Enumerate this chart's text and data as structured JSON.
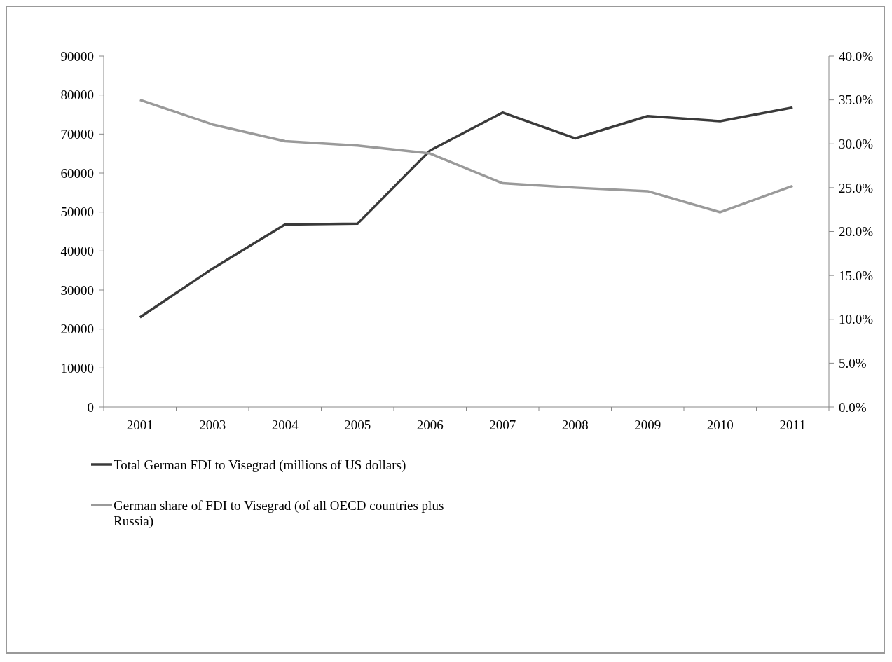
{
  "chart_data": {
    "type": "line",
    "categories": [
      "2001",
      "2003",
      "2004",
      "2005",
      "2006",
      "2007",
      "2008",
      "2009",
      "2010",
      "2011"
    ],
    "series": [
      {
        "name": "Total German FDI to Visegrad (millions of US dollars)",
        "color": "#3a3a3a",
        "values": [
          23000,
          35500,
          46800,
          47000,
          65800,
          75500,
          68900,
          74600,
          73300,
          76800
        ]
      },
      {
        "name": "German share of FDI to Visegrad (of all OECD countries plus Russia)",
        "color": "#9a9a9a",
        "axis": "y2",
        "values": [
          35.0,
          32.2,
          30.3,
          29.8,
          28.9,
          25.5,
          25.0,
          24.6,
          22.2,
          25.2
        ]
      }
    ],
    "ylim": [
      0,
      90000
    ],
    "yticks": [
      0,
      10000,
      20000,
      30000,
      40000,
      50000,
      60000,
      70000,
      80000,
      90000
    ],
    "y2lim": [
      0,
      40
    ],
    "y2ticks": [
      {
        "value": 0,
        "label": "0.0%"
      },
      {
        "value": 5,
        "label": "5.0%"
      },
      {
        "value": 10,
        "label": "10.0%"
      },
      {
        "value": 15,
        "label": "15.0%"
      },
      {
        "value": 20,
        "label": "20.0%"
      },
      {
        "value": 25,
        "label": "25.0%"
      },
      {
        "value": 30,
        "label": "30.0%"
      },
      {
        "value": 35,
        "label": "35.0%"
      },
      {
        "value": 40,
        "label": "40.0%"
      }
    ],
    "grid": false,
    "legend": "bottom",
    "marker": "none",
    "line_style": "solid"
  }
}
